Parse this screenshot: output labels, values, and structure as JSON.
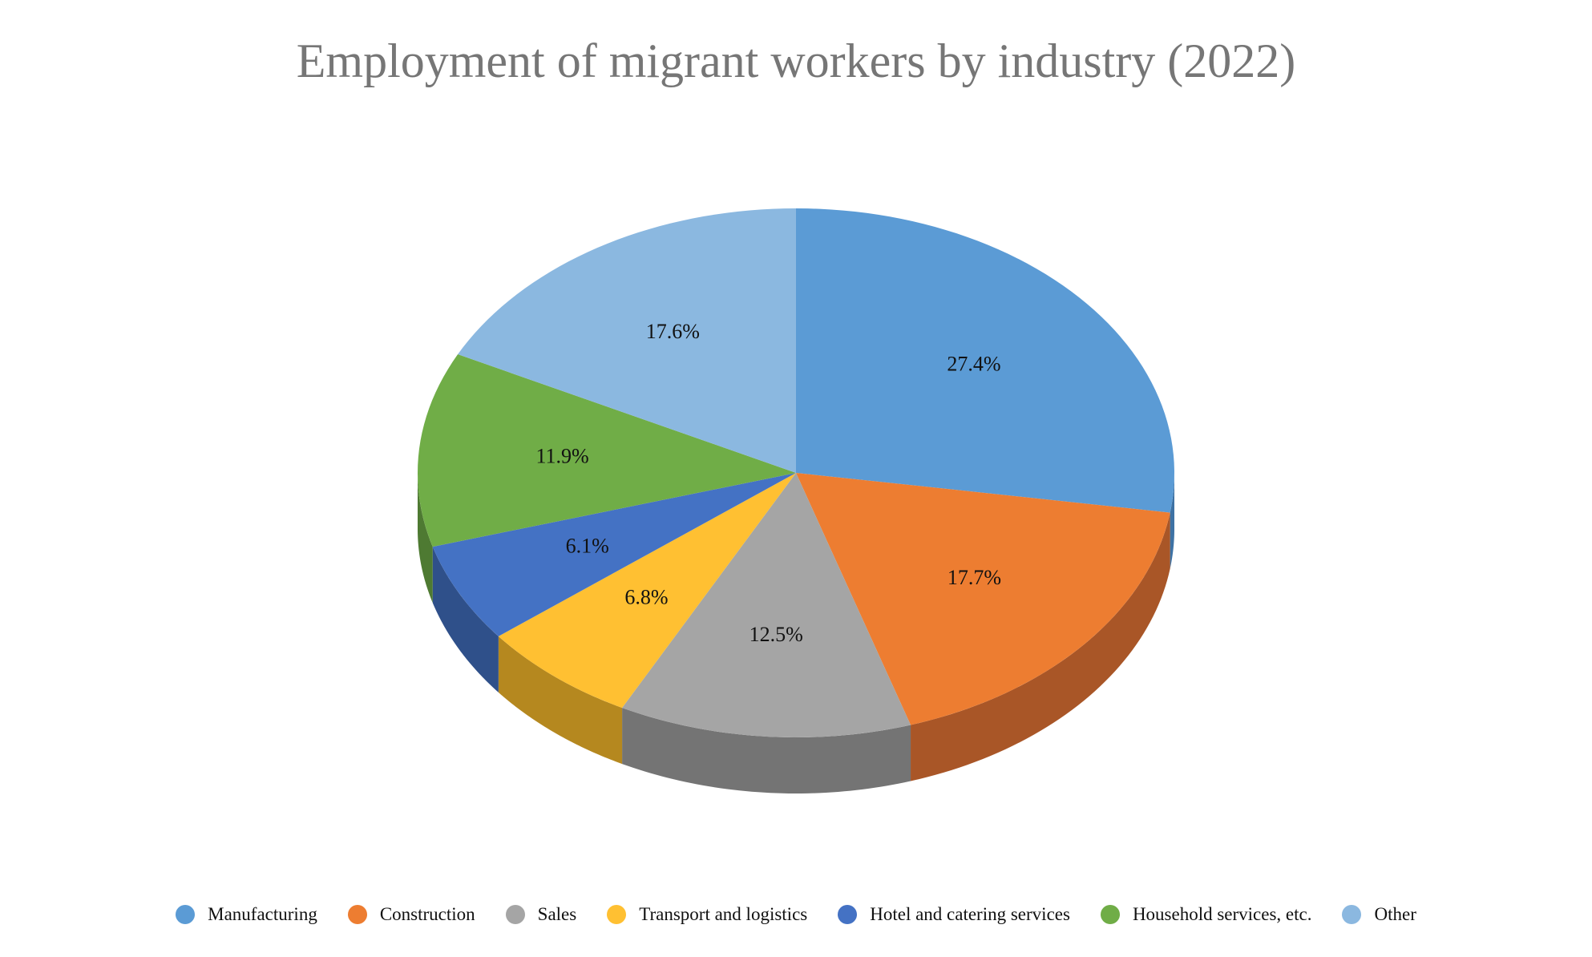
{
  "chart_data": {
    "type": "pie",
    "title": "Employment of migrant workers by industry (2022)",
    "value_format": "percent",
    "slices": [
      {
        "label": "Manufacturing",
        "value": 27.4,
        "display": "27.4%",
        "color": "#5B9BD5",
        "side_color": "#3E72A4"
      },
      {
        "label": "Construction",
        "value": 17.7,
        "display": "17.7%",
        "color": "#ED7D31",
        "side_color": "#A95627"
      },
      {
        "label": "Sales",
        "value": 12.5,
        "display": "12.5%",
        "color": "#A5A5A5",
        "side_color": "#747474"
      },
      {
        "label": "Transport and logistics",
        "value": 6.8,
        "display": "6.8%",
        "color": "#FFC032",
        "side_color": "#B5881F"
      },
      {
        "label": "Hotel and catering services",
        "value": 6.1,
        "display": "6.1%",
        "color": "#4472C4",
        "side_color": "#2F508A"
      },
      {
        "label": "Household services, etc.",
        "value": 11.9,
        "display": "11.9%",
        "color": "#70AD47",
        "side_color": "#4E7A32"
      },
      {
        "label": "Other",
        "value": 17.6,
        "display": "17.6%",
        "color": "#8BB8E0",
        "side_color": "#6690B8"
      }
    ],
    "legend_position": "bottom",
    "style": "3d"
  }
}
